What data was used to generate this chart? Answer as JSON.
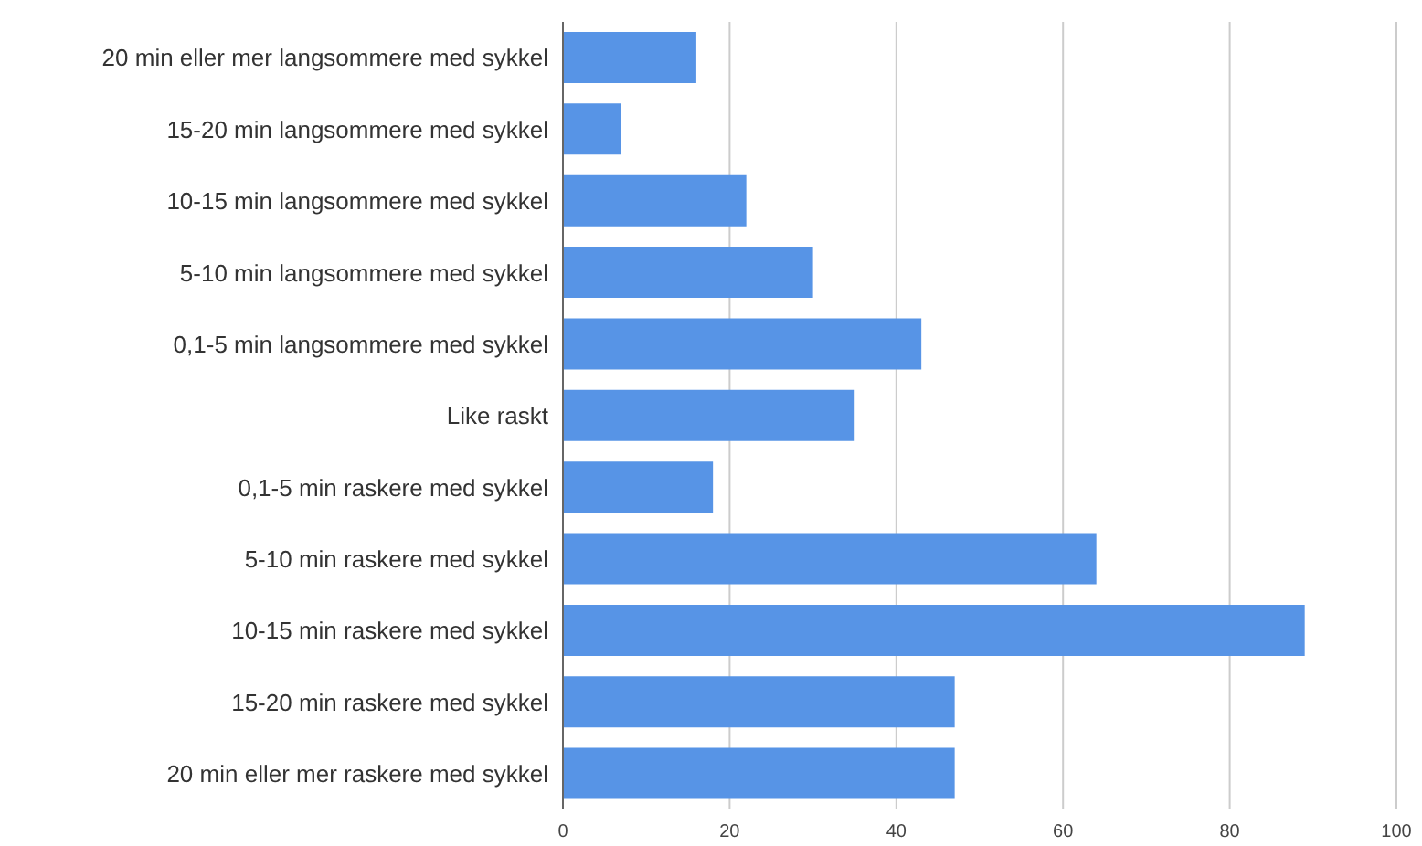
{
  "chart_data": {
    "type": "bar",
    "orientation": "horizontal",
    "categories": [
      "20 min eller mer langsommere med sykkel",
      "15-20 min langsommere med sykkel",
      "10-15 min langsommere med sykkel",
      "5-10 min langsommere med sykkel",
      "0,1-5 min langsommere med sykkel",
      "Like raskt",
      "0,1-5 min raskere med sykkel",
      "5-10 min raskere med sykkel",
      "10-15 min raskere med sykkel",
      "15-20 min raskere med sykkel",
      "20 min eller mer raskere med sykkel"
    ],
    "values": [
      16,
      7,
      22,
      30,
      43,
      35,
      18,
      64,
      89,
      47,
      47
    ],
    "color": "#5794e6",
    "xlim": [
      0,
      100
    ],
    "xticks": [
      0,
      20,
      40,
      60,
      80,
      100
    ],
    "grid": "x"
  }
}
